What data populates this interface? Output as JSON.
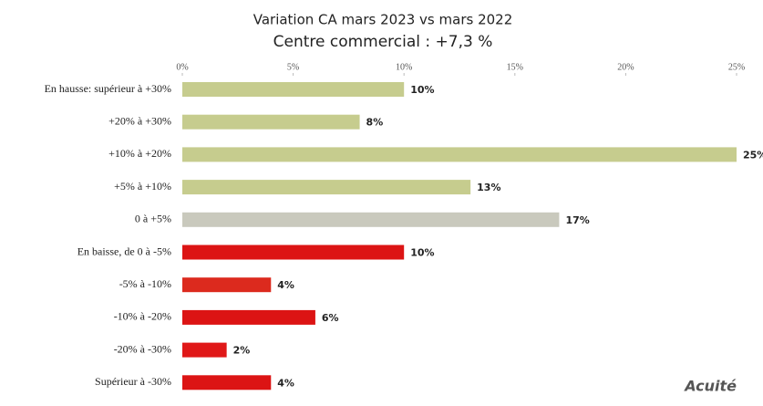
{
  "chart_data": {
    "type": "hbar",
    "title": "Variation CA mars 2023 vs mars 2022",
    "subtitle": "Centre commercial  : +7,3 %",
    "categories": [
      "En hausse: supérieur à +30%",
      "+20% à +30%",
      "+10% à +20%",
      "+5% à +10%",
      "0 à +5%",
      "En baisse, de 0 à -5%",
      "-5% à -10%",
      "-10% à -20%",
      "-20% à -30%",
      "Supérieur à -30%"
    ],
    "values": [
      10,
      8,
      25,
      13,
      17,
      10,
      4,
      6,
      2,
      4
    ],
    "value_labels": [
      "10%",
      "8%",
      "25%",
      "13%",
      "17%",
      "10%",
      "4%",
      "6%",
      "2%",
      "4%"
    ],
    "colors": [
      "#c6cc8e",
      "#c6cc8e",
      "#c6cc8e",
      "#c6cc8e",
      "#c9c9bd",
      "#dc1414",
      "#dc2a1e",
      "#dc1414",
      "#e01818",
      "#dc1414"
    ],
    "xlim": [
      0,
      25
    ],
    "xticks": [
      {
        "value": 0,
        "label": "0%"
      },
      {
        "value": 5,
        "label": "5%"
      },
      {
        "value": 10,
        "label": "10%"
      },
      {
        "value": 15,
        "label": "15%"
      },
      {
        "value": 20,
        "label": "20%"
      },
      {
        "value": 25,
        "label": "25%"
      }
    ],
    "watermark": "Acuité"
  }
}
